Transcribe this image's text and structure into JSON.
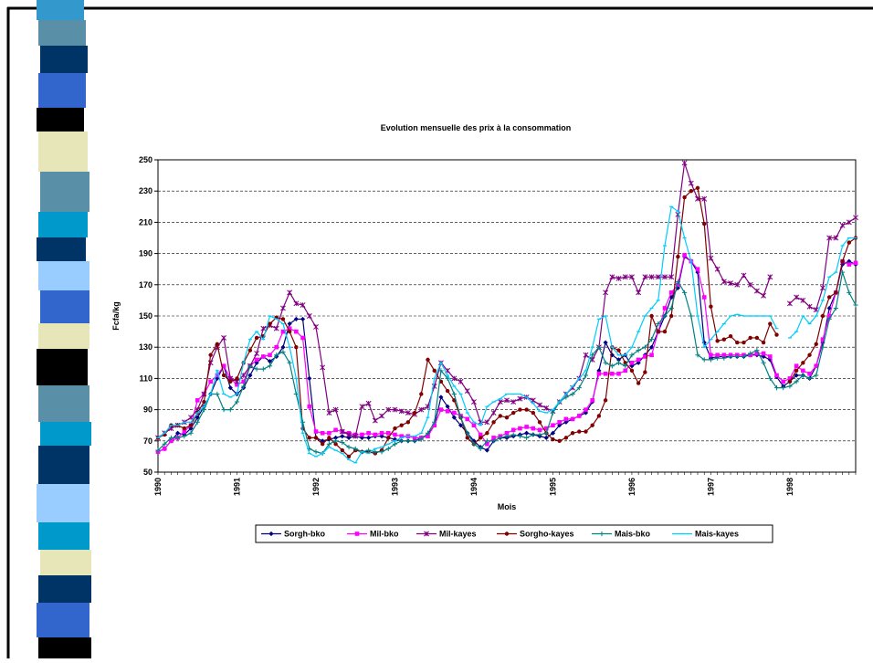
{
  "chart_data": {
    "type": "line",
    "title": "Evolution mensuelle des prix à la consommation",
    "x_label": "Mois",
    "y_label": "Fcfa/kg",
    "categories": [
      "1990",
      null,
      null,
      null,
      null,
      null,
      null,
      null,
      null,
      null,
      null,
      null,
      "1991",
      null,
      null,
      null,
      null,
      null,
      null,
      null,
      null,
      null,
      null,
      null,
      "1992",
      null,
      null,
      null,
      null,
      null,
      null,
      null,
      null,
      null,
      null,
      null,
      "1993",
      null,
      null,
      null,
      null,
      null,
      null,
      null,
      null,
      null,
      null,
      null,
      "1994",
      null,
      null,
      null,
      null,
      null,
      null,
      null,
      null,
      null,
      null,
      null,
      "1995",
      null,
      null,
      null,
      null,
      null,
      null,
      null,
      null,
      null,
      null,
      null,
      "1996",
      null,
      null,
      null,
      null,
      null,
      null,
      null,
      null,
      null,
      null,
      null,
      "1997",
      null,
      null,
      null,
      null,
      null,
      null,
      null,
      null,
      null,
      null,
      null,
      "1998",
      null,
      null,
      null,
      null,
      null,
      null,
      null,
      null,
      null,
      null
    ],
    "ylim": [
      50,
      250
    ],
    "yticks": [
      50,
      70,
      90,
      110,
      130,
      150,
      170,
      190,
      210,
      230,
      250
    ],
    "grid": true,
    "legend": "bottom",
    "series": [
      {
        "name": "Sorgh-bko",
        "color": "#000080",
        "marker": "diamond",
        "values": [
          63,
          65,
          70,
          75,
          74,
          78,
          85,
          92,
          100,
          110,
          118,
          104,
          100,
          104,
          112,
          120,
          124,
          121,
          124,
          130,
          145,
          148,
          148,
          110,
          72,
          70,
          71,
          72,
          73,
          72,
          73,
          72,
          72,
          73,
          73,
          72,
          71,
          70,
          70,
          70,
          72,
          74,
          80,
          98,
          92,
          85,
          80,
          75,
          70,
          66,
          64,
          70,
          72,
          72,
          73,
          74,
          75,
          74,
          73,
          72,
          75,
          80,
          82,
          84,
          86,
          88,
          95,
          115,
          133,
          125,
          122,
          125,
          118,
          120,
          125,
          130,
          140,
          150,
          162,
          168,
          188,
          185,
          178,
          133,
          123,
          124,
          124,
          124,
          124,
          124,
          125,
          125,
          124,
          122,
          111,
          105,
          108,
          112,
          112,
          110,
          118,
          133,
          155,
          165,
          183,
          185,
          183
        ]
      },
      {
        "name": "Mil-bko",
        "color": "#ff00ff",
        "marker": "square",
        "values": [
          63,
          65,
          70,
          72,
          76,
          80,
          96,
          100,
          108,
          112,
          118,
          110,
          106,
          108,
          118,
          122,
          124,
          125,
          130,
          140,
          142,
          140,
          136,
          92,
          76,
          75,
          75,
          77,
          76,
          75,
          74,
          74,
          75,
          74,
          75,
          75,
          74,
          73,
          73,
          72,
          72,
          73,
          80,
          90,
          89,
          88,
          86,
          84,
          80,
          74,
          68,
          72,
          73,
          75,
          77,
          78,
          79,
          78,
          77,
          78,
          80,
          82,
          84,
          84,
          86,
          90,
          96,
          113,
          113,
          113,
          113,
          115,
          120,
          122,
          124,
          125,
          140,
          155,
          165,
          170,
          189,
          185,
          180,
          162,
          125,
          125,
          125,
          125,
          125,
          125,
          125,
          126,
          126,
          124,
          112,
          108,
          110,
          118,
          115,
          113,
          118,
          135,
          150,
          165,
          185,
          183,
          184
        ]
      },
      {
        "name": "Mil-kayes",
        "color": "#800080",
        "marker": "x",
        "values": [
          72,
          75,
          78,
          80,
          82,
          85,
          90,
          100,
          120,
          130,
          136,
          110,
          108,
          112,
          118,
          126,
          142,
          144,
          142,
          155,
          165,
          158,
          157,
          150,
          143,
          117,
          88,
          90,
          76,
          74,
          73,
          92,
          94,
          83,
          86,
          90,
          90,
          89,
          88,
          87,
          90,
          92,
          105,
          120,
          115,
          110,
          108,
          102,
          95,
          82,
          82,
          88,
          95,
          96,
          95,
          97,
          98,
          96,
          93,
          91,
          89,
          95,
          100,
          104,
          110,
          125,
          122,
          130,
          165,
          175,
          174,
          175,
          175,
          165,
          175,
          175,
          175,
          175,
          175,
          215,
          248,
          235,
          225,
          225,
          187,
          180,
          172,
          171,
          170,
          176,
          170,
          166,
          163,
          175,
          null,
          null,
          158,
          162,
          160,
          156,
          154,
          168,
          200,
          200,
          208,
          210,
          213
        ]
      },
      {
        "name": "Sorgho-kayes",
        "color": "#800000",
        "marker": "circle",
        "values": [
          72,
          74,
          80,
          80,
          78,
          80,
          88,
          95,
          125,
          132,
          112,
          108,
          110,
          120,
          128,
          136,
          137,
          145,
          149,
          148,
          140,
          130,
          78,
          72,
          72,
          68,
          72,
          68,
          64,
          60,
          64,
          63,
          63,
          62,
          64,
          72,
          78,
          80,
          82,
          88,
          100,
          122,
          115,
          108,
          102,
          96,
          85,
          72,
          68,
          72,
          75,
          82,
          86,
          85,
          88,
          90,
          90,
          88,
          82,
          75,
          71,
          70,
          72,
          75,
          76,
          76,
          80,
          86,
          96,
          130,
          128,
          120,
          115,
          107,
          114,
          150,
          140,
          140,
          150,
          188,
          226,
          230,
          232,
          209,
          156,
          134,
          135,
          137,
          133,
          133,
          136,
          136,
          133,
          145,
          138,
          null,
          108,
          115,
          120,
          125,
          132,
          150,
          162,
          165,
          185,
          197,
          200
        ]
      },
      {
        "name": "Mais-bko",
        "color": "#008080",
        "marker": "plus",
        "values": [
          64,
          68,
          72,
          72,
          73,
          75,
          82,
          90,
          100,
          100,
          90,
          90,
          95,
          105,
          118,
          116,
          116,
          118,
          125,
          127,
          120,
          100,
          82,
          65,
          63,
          62,
          68,
          70,
          69,
          66,
          65,
          63,
          64,
          63,
          63,
          65,
          68,
          70,
          70,
          70,
          71,
          75,
          82,
          115,
          110,
          100,
          85,
          75,
          68,
          65,
          70,
          70,
          72,
          73,
          74,
          73,
          72,
          74,
          74,
          75,
          88,
          95,
          98,
          100,
          104,
          112,
          125,
          130,
          120,
          118,
          120,
          118,
          125,
          128,
          130,
          135,
          145,
          150,
          155,
          172,
          165,
          150,
          125,
          122,
          122,
          123,
          123,
          124,
          124,
          124,
          126,
          128,
          120,
          110,
          104,
          104,
          105,
          108,
          112,
          110,
          112,
          130,
          148,
          155,
          178,
          165,
          157
        ]
      },
      {
        "name": "Mais-kayes",
        "color": "#00ccff",
        "marker": "dash",
        "values": [
          72,
          75,
          80,
          80,
          82,
          82,
          88,
          92,
          100,
          115,
          100,
          98,
          100,
          120,
          135,
          140,
          135,
          150,
          148,
          145,
          130,
          110,
          75,
          62,
          60,
          62,
          66,
          64,
          62,
          58,
          56,
          63,
          62,
          65,
          66,
          68,
          70,
          72,
          73,
          73,
          75,
          85,
          110,
          120,
          112,
          105,
          100,
          88,
          82,
          80,
          92,
          95,
          97,
          100,
          100,
          100,
          98,
          94,
          89,
          88,
          90,
          95,
          100,
          105,
          110,
          115,
          130,
          148,
          150,
          130,
          125,
          125,
          130,
          140,
          150,
          155,
          160,
          195,
          220,
          217,
          200,
          185,
          150,
          130,
          135,
          140,
          145,
          150,
          151,
          150,
          150,
          150,
          150,
          150,
          142,
          null,
          136,
          140,
          150,
          145,
          150,
          160,
          175,
          178,
          195,
          200,
          200
        ]
      }
    ]
  }
}
